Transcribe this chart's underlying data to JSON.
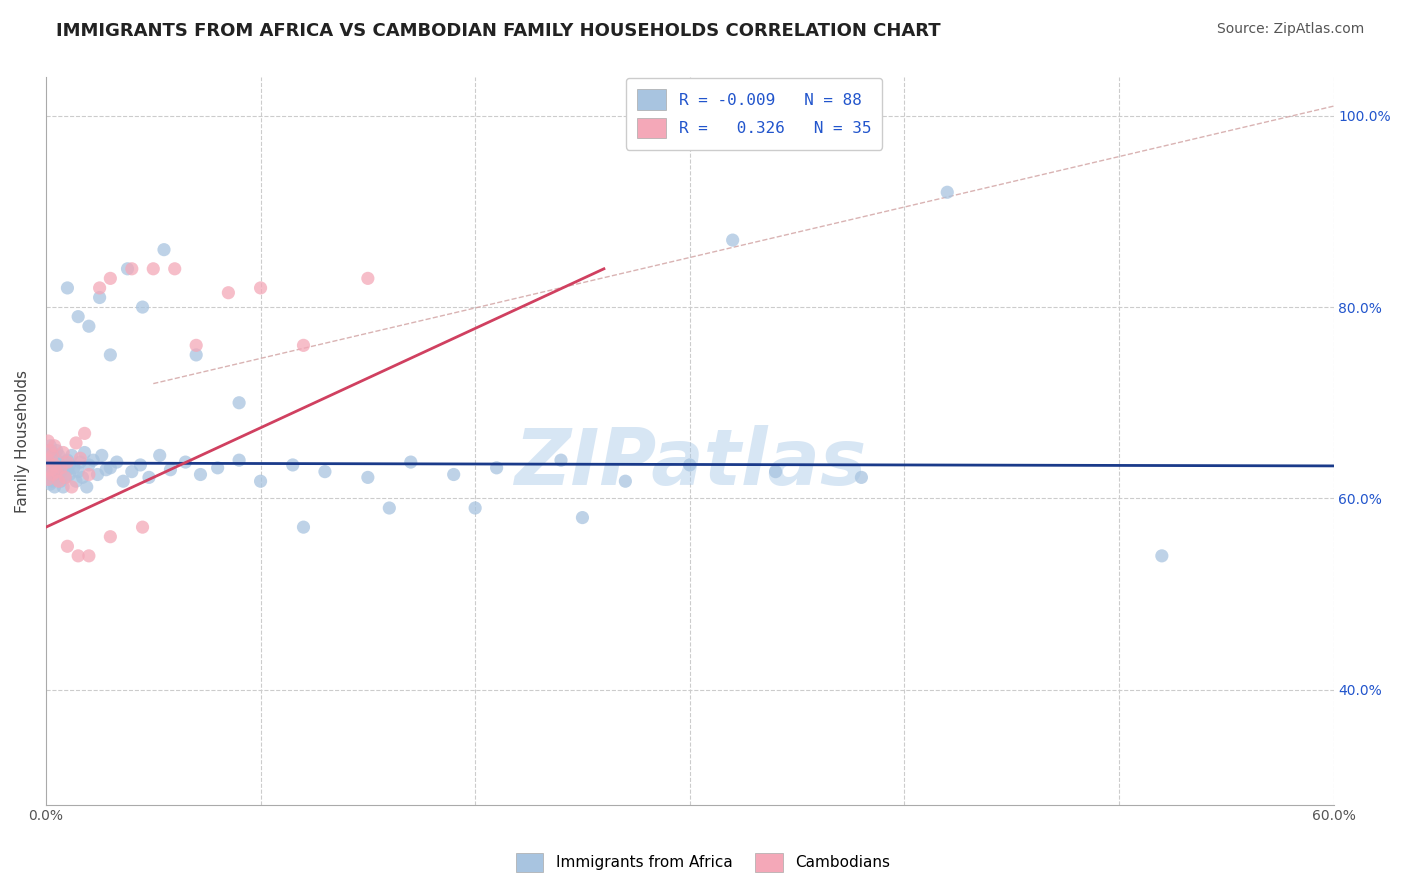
{
  "title": "IMMIGRANTS FROM AFRICA VS CAMBODIAN FAMILY HOUSEHOLDS CORRELATION CHART",
  "source": "Source: ZipAtlas.com",
  "ylabel": "Family Households",
  "xlim": [
    0.0,
    0.6
  ],
  "ylim": [
    0.28,
    1.04
  ],
  "africa_color": "#a8c4e0",
  "cambodian_color": "#f4a8b8",
  "trendline_africa_color": "#1a3a8a",
  "trendline_cambodian_color": "#d04060",
  "ref_line_color": "#d0a0a0",
  "watermark": "ZIPatlas",
  "watermark_color": "#a8c8e8",
  "legend_color": "#2255cc",
  "africa_x": [
    0.001,
    0.001,
    0.001,
    0.001,
    0.002,
    0.002,
    0.002,
    0.002,
    0.002,
    0.003,
    0.003,
    0.003,
    0.003,
    0.004,
    0.004,
    0.004,
    0.005,
    0.005,
    0.005,
    0.005,
    0.006,
    0.006,
    0.006,
    0.007,
    0.007,
    0.008,
    0.008,
    0.009,
    0.009,
    0.01,
    0.01,
    0.011,
    0.011,
    0.012,
    0.013,
    0.014,
    0.015,
    0.016,
    0.017,
    0.018,
    0.019,
    0.02,
    0.022,
    0.024,
    0.026,
    0.028,
    0.03,
    0.033,
    0.036,
    0.04,
    0.044,
    0.048,
    0.053,
    0.058,
    0.065,
    0.072,
    0.08,
    0.09,
    0.1,
    0.115,
    0.13,
    0.15,
    0.17,
    0.19,
    0.21,
    0.24,
    0.27,
    0.3,
    0.34,
    0.38,
    0.005,
    0.01,
    0.015,
    0.02,
    0.025,
    0.03,
    0.038,
    0.045,
    0.055,
    0.07,
    0.09,
    0.12,
    0.16,
    0.2,
    0.25,
    0.32,
    0.42,
    0.52
  ],
  "africa_y": [
    0.63,
    0.64,
    0.65,
    0.62,
    0.635,
    0.625,
    0.645,
    0.655,
    0.615,
    0.632,
    0.628,
    0.618,
    0.648,
    0.622,
    0.638,
    0.612,
    0.63,
    0.64,
    0.62,
    0.65,
    0.625,
    0.635,
    0.645,
    0.628,
    0.618,
    0.632,
    0.612,
    0.638,
    0.622,
    0.63,
    0.64,
    0.635,
    0.625,
    0.645,
    0.632,
    0.618,
    0.628,
    0.638,
    0.622,
    0.648,
    0.612,
    0.635,
    0.64,
    0.625,
    0.645,
    0.63,
    0.632,
    0.638,
    0.618,
    0.628,
    0.635,
    0.622,
    0.645,
    0.63,
    0.638,
    0.625,
    0.632,
    0.64,
    0.618,
    0.635,
    0.628,
    0.622,
    0.638,
    0.625,
    0.632,
    0.64,
    0.618,
    0.635,
    0.628,
    0.622,
    0.76,
    0.82,
    0.79,
    0.78,
    0.81,
    0.75,
    0.84,
    0.8,
    0.86,
    0.75,
    0.7,
    0.57,
    0.59,
    0.59,
    0.58,
    0.87,
    0.92,
    0.54
  ],
  "cambodian_x": [
    0.001,
    0.001,
    0.001,
    0.002,
    0.002,
    0.003,
    0.003,
    0.004,
    0.004,
    0.005,
    0.006,
    0.007,
    0.008,
    0.009,
    0.01,
    0.012,
    0.014,
    0.016,
    0.018,
    0.02,
    0.025,
    0.03,
    0.04,
    0.05,
    0.06,
    0.07,
    0.085,
    0.1,
    0.12,
    0.15,
    0.01,
    0.015,
    0.02,
    0.03,
    0.045
  ],
  "cambodian_y": [
    0.62,
    0.64,
    0.66,
    0.63,
    0.65,
    0.625,
    0.645,
    0.635,
    0.655,
    0.628,
    0.618,
    0.632,
    0.648,
    0.622,
    0.638,
    0.612,
    0.658,
    0.642,
    0.668,
    0.625,
    0.82,
    0.83,
    0.84,
    0.84,
    0.84,
    0.76,
    0.815,
    0.82,
    0.76,
    0.83,
    0.55,
    0.54,
    0.54,
    0.56,
    0.57
  ],
  "africa_trend_x": [
    0.0,
    0.6
  ],
  "africa_trend_y": [
    0.637,
    0.634
  ],
  "cambodian_trend_x": [
    0.0,
    0.26
  ],
  "cambodian_trend_y": [
    0.57,
    0.84
  ],
  "ref_line_x": [
    0.05,
    0.6
  ],
  "ref_line_y": [
    0.72,
    1.01
  ]
}
